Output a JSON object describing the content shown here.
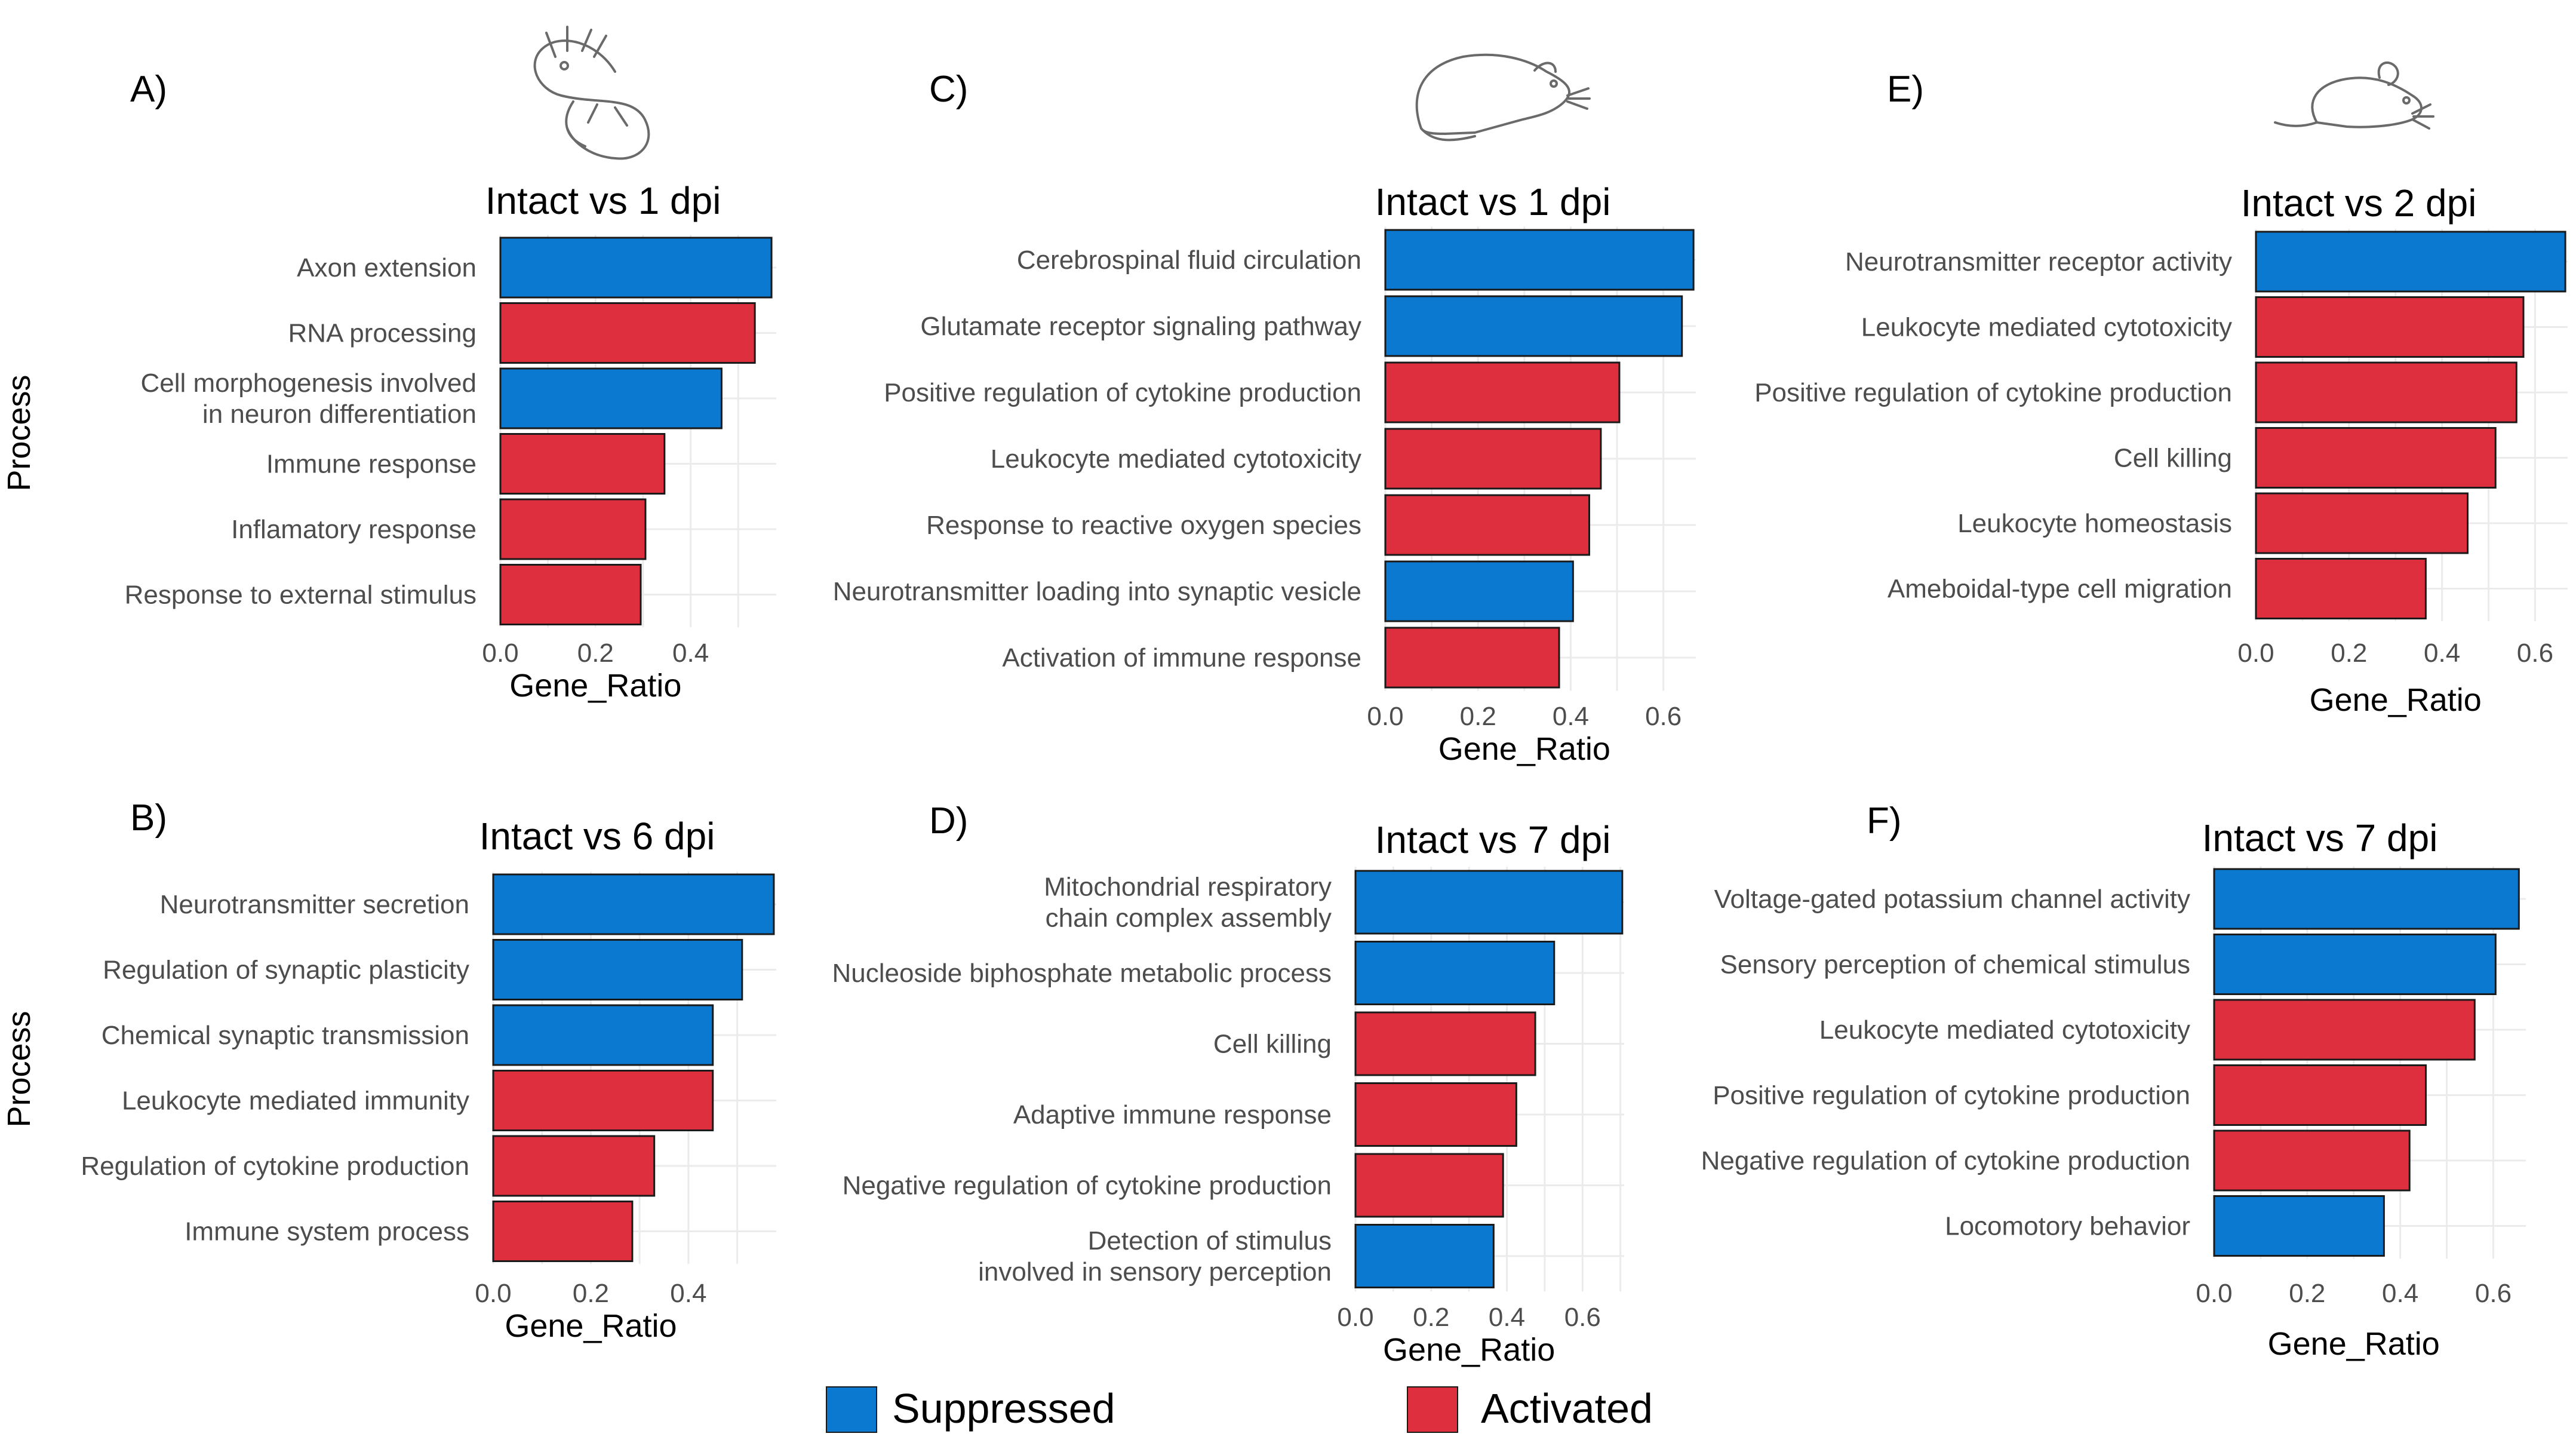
{
  "colors": {
    "Suppressed": "#0a79cf",
    "Activated": "#de2f3f"
  },
  "legend": {
    "suppressed_label": "Suppressed",
    "activated_label": "Activated"
  },
  "process_label": "Process",
  "animals": [
    "axolotl",
    "rat",
    "mouse"
  ],
  "chart_data": [
    {
      "type": "bar",
      "panel": "A)",
      "title": "Intact  vs 1 dpi",
      "xlabel": "Gene_Ratio",
      "ylabel": "Process",
      "xlim": [
        0,
        0.58
      ],
      "xticks": [
        0.0,
        0.2,
        0.4
      ],
      "xtick_labels": [
        "0.0",
        "0.2",
        "0.4"
      ],
      "categories": [
        {
          "label": [
            "Axon extension"
          ],
          "value": 0.57,
          "status": "Suppressed"
        },
        {
          "label": [
            "RNA processing"
          ],
          "value": 0.535,
          "status": "Activated"
        },
        {
          "label": [
            "Cell morphogenesis involved",
            "in neuron differentiation"
          ],
          "value": 0.465,
          "status": "Suppressed"
        },
        {
          "label": [
            "Immune response"
          ],
          "value": 0.345,
          "status": "Activated"
        },
        {
          "label": [
            "Inflamatory response"
          ],
          "value": 0.305,
          "status": "Activated"
        },
        {
          "label": [
            "Response to external stimulus"
          ],
          "value": 0.295,
          "status": "Activated"
        }
      ]
    },
    {
      "type": "bar",
      "panel": "B)",
      "title": "Intact vs 6 dpi",
      "xlabel": "Gene_Ratio",
      "ylabel": "Process",
      "xlim": [
        0,
        0.58
      ],
      "xticks": [
        0.0,
        0.2,
        0.4
      ],
      "xtick_labels": [
        "0.0",
        "0.2",
        "0.4"
      ],
      "categories": [
        {
          "label": [
            "Neurotransmitter secretion"
          ],
          "value": 0.575,
          "status": "Suppressed"
        },
        {
          "label": [
            "Regulation of synaptic plasticity"
          ],
          "value": 0.51,
          "status": "Suppressed"
        },
        {
          "label": [
            "Chemical synaptic transmission"
          ],
          "value": 0.45,
          "status": "Suppressed"
        },
        {
          "label": [
            "Leukocyte mediated immunity"
          ],
          "value": 0.45,
          "status": "Activated"
        },
        {
          "label": [
            "Regulation of cytokine production"
          ],
          "value": 0.33,
          "status": "Activated"
        },
        {
          "label": [
            "Immune system process"
          ],
          "value": 0.285,
          "status": "Activated"
        }
      ]
    },
    {
      "type": "bar",
      "panel": "C)",
      "title": "Intact  vs 1 dpi",
      "xlabel": "Gene_Ratio",
      "xlim": [
        0,
        0.67
      ],
      "xticks": [
        0.0,
        0.2,
        0.4,
        0.6
      ],
      "xtick_labels": [
        "0.0",
        "0.2",
        "0.4",
        "0.6"
      ],
      "categories": [
        {
          "label": [
            "Cerebrospinal fluid circulation"
          ],
          "value": 0.665,
          "status": "Suppressed"
        },
        {
          "label": [
            "Glutamate receptor signaling pathway"
          ],
          "value": 0.64,
          "status": "Suppressed"
        },
        {
          "label": [
            "Positive regulation of cytokine production"
          ],
          "value": 0.505,
          "status": "Activated"
        },
        {
          "label": [
            "Leukocyte mediated cytotoxicity"
          ],
          "value": 0.465,
          "status": "Activated"
        },
        {
          "label": [
            "Response to reactive oxygen species"
          ],
          "value": 0.44,
          "status": "Activated"
        },
        {
          "label": [
            "Neurotransmitter loading into synaptic vesicle"
          ],
          "value": 0.405,
          "status": "Suppressed"
        },
        {
          "label": [
            "Activation of immune response"
          ],
          "value": 0.375,
          "status": "Activated"
        }
      ]
    },
    {
      "type": "bar",
      "panel": "D)",
      "title": "Intact vs 7 dpi",
      "xlabel": "Gene_Ratio",
      "xlim": [
        0,
        0.71
      ],
      "xticks": [
        0.0,
        0.2,
        0.4,
        0.6
      ],
      "xtick_labels": [
        "0.0",
        "0.2",
        "0.4",
        "0.6"
      ],
      "categories": [
        {
          "label": [
            "Mitochondrial respiratory",
            "chain complex assembly"
          ],
          "value": 0.705,
          "status": "Suppressed"
        },
        {
          "label": [
            "Nucleoside biphosphate metabolic process"
          ],
          "value": 0.525,
          "status": "Suppressed"
        },
        {
          "label": [
            "Cell killing"
          ],
          "value": 0.475,
          "status": "Activated"
        },
        {
          "label": [
            "Adaptive immune response"
          ],
          "value": 0.425,
          "status": "Activated"
        },
        {
          "label": [
            "Negative regulation of cytokine production"
          ],
          "value": 0.39,
          "status": "Activated"
        },
        {
          "label": [
            "Detection of stimulus",
            "involved in sensory perception"
          ],
          "value": 0.365,
          "status": "Suppressed"
        }
      ]
    },
    {
      "type": "bar",
      "panel": "E)",
      "title": "Intact vs 2 dpi",
      "xlabel": "Gene_Ratio",
      "xlim": [
        0,
        0.67
      ],
      "xticks": [
        0.0,
        0.2,
        0.4,
        0.6
      ],
      "xtick_labels": [
        "0.0",
        "0.2",
        "0.4",
        "0.6"
      ],
      "categories": [
        {
          "label": [
            "Neurotransmitter receptor activity"
          ],
          "value": 0.665,
          "status": "Suppressed"
        },
        {
          "label": [
            "Leukocyte mediated cytotoxicity"
          ],
          "value": 0.575,
          "status": "Activated"
        },
        {
          "label": [
            "Positive regulation of cytokine production"
          ],
          "value": 0.56,
          "status": "Activated"
        },
        {
          "label": [
            "Cell killing"
          ],
          "value": 0.515,
          "status": "Activated"
        },
        {
          "label": [
            "Leukocyte homeostasis"
          ],
          "value": 0.455,
          "status": "Activated"
        },
        {
          "label": [
            "Ameboidal-type cell migration"
          ],
          "value": 0.365,
          "status": "Activated"
        }
      ]
    },
    {
      "type": "bar",
      "panel": "F)",
      "title": "Intact vs 7 dpi",
      "xlabel": "Gene_Ratio",
      "xlim": [
        0,
        0.67
      ],
      "xticks": [
        0.0,
        0.2,
        0.4,
        0.6
      ],
      "xtick_labels": [
        "0.0",
        "0.2",
        "0.4",
        "0.6"
      ],
      "categories": [
        {
          "label": [
            "Voltage-gated potassium channel activity"
          ],
          "value": 0.655,
          "status": "Suppressed"
        },
        {
          "label": [
            "Sensory perception of chemical stimulus"
          ],
          "value": 0.605,
          "status": "Suppressed"
        },
        {
          "label": [
            "Leukocyte mediated cytotoxicity"
          ],
          "value": 0.56,
          "status": "Activated"
        },
        {
          "label": [
            "Positive regulation of cytokine production"
          ],
          "value": 0.455,
          "status": "Activated"
        },
        {
          "label": [
            "Negative regulation of cytokine production"
          ],
          "value": 0.42,
          "status": "Activated"
        },
        {
          "label": [
            "Locomotory behavior"
          ],
          "value": 0.365,
          "status": "Suppressed"
        }
      ]
    }
  ]
}
